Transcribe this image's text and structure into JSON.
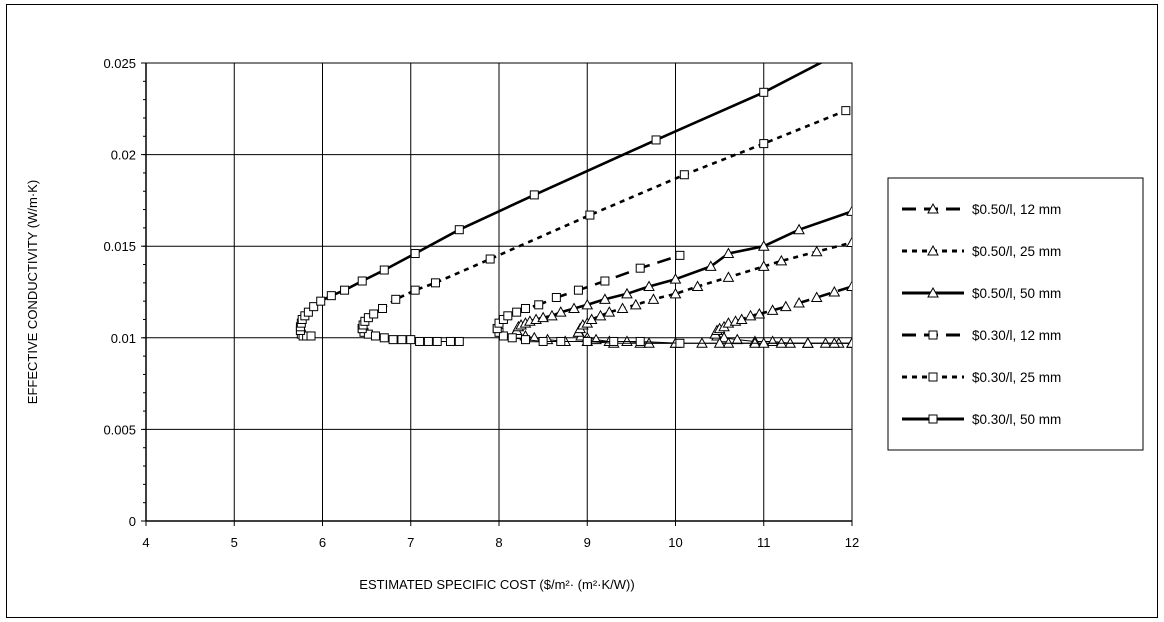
{
  "chart_data": {
    "type": "scatter",
    "title": "",
    "xlabel": "ESTIMATED SPECIFIC COST  ($/m²· (m²·K/W))",
    "ylabel": "EFFECTIVE CONDUCTIVITY  (W/m·K)",
    "xlim": [
      4,
      12
    ],
    "ylim": [
      0,
      0.025
    ],
    "x_ticks": [
      "4",
      "5",
      "6",
      "7",
      "8",
      "9",
      "10",
      "11",
      "12"
    ],
    "y_ticks": [
      "0",
      "0.005",
      "0.01",
      "0.015",
      "0.02",
      "0.025"
    ],
    "grid": true,
    "legend_position": "right",
    "series": [
      {
        "name": "$0.50/l, 12 mm",
        "line": "longdash",
        "marker": "triangle",
        "points": [
          [
            10.45,
            0.0102
          ],
          [
            10.47,
            0.0104
          ],
          [
            10.5,
            0.0105
          ],
          [
            10.55,
            0.0106
          ],
          [
            10.6,
            0.0108
          ],
          [
            10.68,
            0.0109
          ],
          [
            10.75,
            0.011
          ],
          [
            10.85,
            0.0112
          ],
          [
            10.95,
            0.0113
          ],
          [
            11.1,
            0.0115
          ],
          [
            11.25,
            0.0117
          ],
          [
            11.4,
            0.0119
          ],
          [
            11.6,
            0.0122
          ],
          [
            11.8,
            0.0125
          ],
          [
            12.0,
            0.0128
          ]
        ],
        "lower_branch": [
          [
            10.45,
            0.0102
          ],
          [
            10.47,
            0.0101
          ],
          [
            10.55,
            0.01
          ],
          [
            10.7,
            0.0099
          ],
          [
            10.9,
            0.0098
          ],
          [
            11.1,
            0.0098
          ],
          [
            11.3,
            0.0097
          ],
          [
            11.5,
            0.0097
          ],
          [
            11.7,
            0.0097
          ],
          [
            11.85,
            0.0097
          ],
          [
            12.0,
            0.0097
          ]
        ]
      },
      {
        "name": "$0.50/l, 25 mm",
        "line": "shortdash",
        "marker": "triangle",
        "points": [
          [
            8.9,
            0.0103
          ],
          [
            8.92,
            0.0105
          ],
          [
            8.95,
            0.0107
          ],
          [
            9.0,
            0.0108
          ],
          [
            9.05,
            0.011
          ],
          [
            9.15,
            0.0112
          ],
          [
            9.25,
            0.0114
          ],
          [
            9.4,
            0.0116
          ],
          [
            9.55,
            0.0118
          ],
          [
            9.75,
            0.0121
          ],
          [
            10.0,
            0.0124
          ],
          [
            10.25,
            0.0128
          ],
          [
            10.6,
            0.0133
          ],
          [
            11.0,
            0.0139
          ],
          [
            11.2,
            0.0142
          ],
          [
            11.6,
            0.0147
          ],
          [
            12.0,
            0.0152
          ]
        ],
        "lower_branch": [
          [
            8.9,
            0.0103
          ],
          [
            8.93,
            0.0101
          ],
          [
            9.0,
            0.01
          ],
          [
            9.1,
            0.0099
          ],
          [
            9.25,
            0.0098
          ],
          [
            9.45,
            0.0098
          ],
          [
            9.7,
            0.0097
          ],
          [
            10.0,
            0.0097
          ],
          [
            10.3,
            0.0097
          ],
          [
            10.6,
            0.0097
          ],
          [
            10.9,
            0.0097
          ],
          [
            11.2,
            0.0097
          ],
          [
            11.5,
            0.0097
          ],
          [
            11.8,
            0.0097
          ],
          [
            12.0,
            0.0097
          ]
        ]
      },
      {
        "name": "$0.50/l, 50 mm",
        "line": "solid",
        "marker": "triangle",
        "points": [
          [
            8.2,
            0.0104
          ],
          [
            8.22,
            0.0106
          ],
          [
            8.25,
            0.0107
          ],
          [
            8.3,
            0.0108
          ],
          [
            8.35,
            0.0109
          ],
          [
            8.42,
            0.011
          ],
          [
            8.5,
            0.0111
          ],
          [
            8.6,
            0.0112
          ],
          [
            8.7,
            0.0114
          ],
          [
            8.85,
            0.0116
          ],
          [
            9.0,
            0.0118
          ],
          [
            9.2,
            0.0121
          ],
          [
            9.45,
            0.0124
          ],
          [
            9.7,
            0.0128
          ],
          [
            10.0,
            0.0132
          ],
          [
            10.4,
            0.0139
          ],
          [
            10.6,
            0.0146
          ],
          [
            11.0,
            0.015
          ],
          [
            11.4,
            0.0159
          ],
          [
            12.0,
            0.0169
          ]
        ],
        "lower_branch": [
          [
            8.2,
            0.0104
          ],
          [
            8.22,
            0.0102
          ],
          [
            8.3,
            0.0101
          ],
          [
            8.4,
            0.01
          ],
          [
            8.55,
            0.0099
          ],
          [
            8.75,
            0.0098
          ],
          [
            9.0,
            0.0098
          ],
          [
            9.3,
            0.0097
          ],
          [
            9.6,
            0.0097
          ],
          [
            10.0,
            0.0097
          ],
          [
            10.5,
            0.0097
          ],
          [
            11.0,
            0.0097
          ],
          [
            11.5,
            0.0097
          ],
          [
            12.0,
            0.0097
          ]
        ]
      },
      {
        "name": "$0.30/l, 12 mm",
        "line": "longdash",
        "marker": "square",
        "points": [
          [
            7.98,
            0.0105
          ],
          [
            8.0,
            0.0108
          ],
          [
            8.05,
            0.011
          ],
          [
            8.1,
            0.0112
          ],
          [
            8.2,
            0.0114
          ],
          [
            8.3,
            0.0116
          ],
          [
            8.45,
            0.0118
          ],
          [
            8.65,
            0.0122
          ],
          [
            8.9,
            0.0126
          ],
          [
            9.2,
            0.0131
          ],
          [
            9.6,
            0.0138
          ],
          [
            10.05,
            0.0145
          ]
        ],
        "lower_branch": [
          [
            7.98,
            0.0105
          ],
          [
            8.0,
            0.0103
          ],
          [
            8.05,
            0.0101
          ],
          [
            8.15,
            0.01
          ],
          [
            8.3,
            0.0099
          ],
          [
            8.5,
            0.0098
          ],
          [
            8.7,
            0.0098
          ],
          [
            9.0,
            0.0098
          ],
          [
            9.3,
            0.0098
          ],
          [
            9.6,
            0.0098
          ],
          [
            10.05,
            0.0097
          ]
        ]
      },
      {
        "name": "$0.30/l, 25 mm",
        "line": "shortdash",
        "marker": "square",
        "points": [
          [
            6.45,
            0.0105
          ],
          [
            6.46,
            0.0107
          ],
          [
            6.48,
            0.0109
          ],
          [
            6.52,
            0.0111
          ],
          [
            6.58,
            0.0113
          ],
          [
            6.68,
            0.0116
          ],
          [
            6.83,
            0.0121
          ],
          [
            7.05,
            0.0126
          ],
          [
            7.28,
            0.013
          ],
          [
            7.9,
            0.0143
          ],
          [
            9.03,
            0.0167
          ],
          [
            10.1,
            0.0189
          ],
          [
            11.0,
            0.0206
          ],
          [
            11.93,
            0.0224
          ]
        ],
        "lower_branch": [
          [
            6.45,
            0.0105
          ],
          [
            6.47,
            0.0103
          ],
          [
            6.52,
            0.0102
          ],
          [
            6.6,
            0.0101
          ],
          [
            6.7,
            0.01
          ],
          [
            6.8,
            0.0099
          ],
          [
            6.9,
            0.0099
          ],
          [
            7.0,
            0.0099
          ],
          [
            7.1,
            0.0098
          ],
          [
            7.2,
            0.0098
          ],
          [
            7.3,
            0.0098
          ],
          [
            7.45,
            0.0098
          ],
          [
            7.55,
            0.0098
          ]
        ]
      },
      {
        "name": "$0.30/l, 50 mm",
        "line": "solid",
        "marker": "square",
        "points": [
          [
            5.75,
            0.0104
          ],
          [
            5.75,
            0.0106
          ],
          [
            5.76,
            0.0108
          ],
          [
            5.77,
            0.011
          ],
          [
            5.8,
            0.0112
          ],
          [
            5.84,
            0.0114
          ],
          [
            5.9,
            0.0117
          ],
          [
            5.98,
            0.012
          ],
          [
            6.1,
            0.0123
          ],
          [
            6.25,
            0.0126
          ],
          [
            6.45,
            0.0131
          ],
          [
            6.7,
            0.0137
          ],
          [
            7.05,
            0.0146
          ],
          [
            7.55,
            0.0159
          ],
          [
            8.4,
            0.0178
          ],
          [
            9.78,
            0.0208
          ],
          [
            11.0,
            0.0234
          ],
          [
            11.8,
            0.0254
          ]
        ],
        "lower_branch": [
          [
            5.75,
            0.0104
          ],
          [
            5.76,
            0.0102
          ],
          [
            5.78,
            0.0101
          ],
          [
            5.82,
            0.0101
          ],
          [
            5.87,
            0.0101
          ]
        ]
      }
    ]
  }
}
